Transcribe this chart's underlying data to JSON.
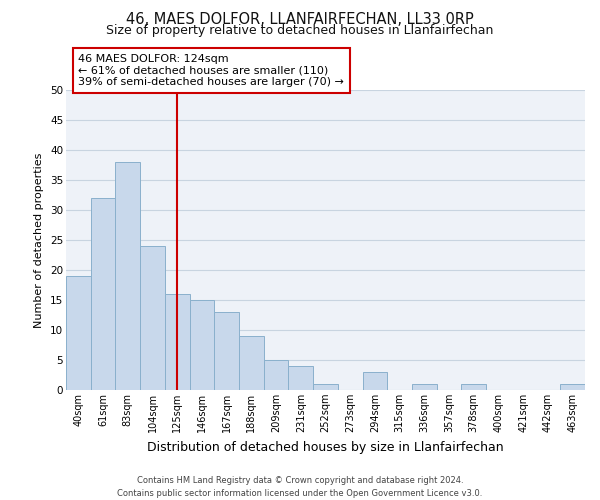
{
  "title": "46, MAES DOLFOR, LLANFAIRFECHAN, LL33 0RP",
  "subtitle": "Size of property relative to detached houses in Llanfairfechan",
  "xlabel": "Distribution of detached houses by size in Llanfairfechan",
  "ylabel": "Number of detached properties",
  "bar_labels": [
    "40sqm",
    "61sqm",
    "83sqm",
    "104sqm",
    "125sqm",
    "146sqm",
    "167sqm",
    "188sqm",
    "209sqm",
    "231sqm",
    "252sqm",
    "273sqm",
    "294sqm",
    "315sqm",
    "336sqm",
    "357sqm",
    "378sqm",
    "400sqm",
    "421sqm",
    "442sqm",
    "463sqm"
  ],
  "bar_values": [
    19,
    32,
    38,
    24,
    16,
    15,
    13,
    9,
    5,
    4,
    1,
    0,
    3,
    0,
    1,
    0,
    1,
    0,
    0,
    0,
    1
  ],
  "bar_color": "#c8d8eb",
  "bar_edge_color": "#8ab0cc",
  "annotation_line_x_label": "125sqm",
  "annotation_line_color": "#cc0000",
  "annotation_box_text": "46 MAES DOLFOR: 124sqm\n← 61% of detached houses are smaller (110)\n39% of semi-detached houses are larger (70) →",
  "ylim": [
    0,
    50
  ],
  "yticks": [
    0,
    5,
    10,
    15,
    20,
    25,
    30,
    35,
    40,
    45,
    50
  ],
  "grid_color": "#c8d4e0",
  "background_color": "#eef2f8",
  "footer_text": "Contains HM Land Registry data © Crown copyright and database right 2024.\nContains public sector information licensed under the Open Government Licence v3.0.",
  "title_fontsize": 10.5,
  "subtitle_fontsize": 9,
  "xlabel_fontsize": 9,
  "ylabel_fontsize": 8,
  "annotation_fontsize": 8,
  "tick_fontsize": 7
}
